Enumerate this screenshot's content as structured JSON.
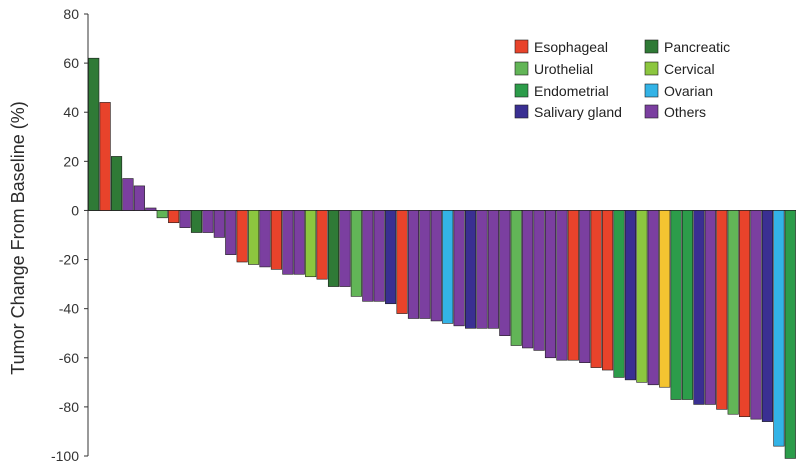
{
  "chart_data": {
    "type": "bar",
    "title": "",
    "xlabel": "",
    "ylabel": "Tumor Change From Baseline (%)",
    "ylim": [
      -100,
      80
    ],
    "yticks": [
      80,
      60,
      40,
      20,
      0,
      -20,
      -40,
      -60,
      -80,
      -100
    ],
    "grid": false,
    "legend_position": "top-right",
    "colors": {
      "Esophageal": "#e8432b",
      "Urothelial": "#62b557",
      "Endometrial": "#2c9c4a",
      "Salivary gland": "#3a2f92",
      "Pancreatic": "#2f7a36",
      "Cervical": "#8cc63f",
      "Ovarian": "#33b3e6",
      "Others": "#7b3fa0",
      "Yellow": "#f4c431"
    },
    "legend": [
      {
        "name": "Esophageal",
        "color": "#e8432b"
      },
      {
        "name": "Pancreatic",
        "color": "#2f7a36"
      },
      {
        "name": "Urothelial",
        "color": "#62b557"
      },
      {
        "name": "Cervical",
        "color": "#8cc63f"
      },
      {
        "name": "Endometrial",
        "color": "#2c9c4a"
      },
      {
        "name": "Ovarian",
        "color": "#33b3e6"
      },
      {
        "name": "Salivary gland",
        "color": "#3a2f92"
      },
      {
        "name": "Others",
        "color": "#7b3fa0"
      }
    ],
    "bars": [
      {
        "cat": "Pancreatic",
        "value": 62
      },
      {
        "cat": "Esophageal",
        "value": 44
      },
      {
        "cat": "Pancreatic",
        "value": 22
      },
      {
        "cat": "Others",
        "value": 13
      },
      {
        "cat": "Others",
        "value": 10
      },
      {
        "cat": "Others",
        "value": 1
      },
      {
        "cat": "Urothelial",
        "value": -3
      },
      {
        "cat": "Esophageal",
        "value": -5
      },
      {
        "cat": "Others",
        "value": -7
      },
      {
        "cat": "Pancreatic",
        "value": -9
      },
      {
        "cat": "Others",
        "value": -9
      },
      {
        "cat": "Others",
        "value": -11
      },
      {
        "cat": "Others",
        "value": -18
      },
      {
        "cat": "Esophageal",
        "value": -21
      },
      {
        "cat": "Cervical",
        "value": -22
      },
      {
        "cat": "Others",
        "value": -23
      },
      {
        "cat": "Esophageal",
        "value": -24
      },
      {
        "cat": "Others",
        "value": -26
      },
      {
        "cat": "Others",
        "value": -26
      },
      {
        "cat": "Cervical",
        "value": -27
      },
      {
        "cat": "Esophageal",
        "value": -28
      },
      {
        "cat": "Pancreatic",
        "value": -31
      },
      {
        "cat": "Others",
        "value": -31
      },
      {
        "cat": "Urothelial",
        "value": -35
      },
      {
        "cat": "Others",
        "value": -37
      },
      {
        "cat": "Others",
        "value": -37
      },
      {
        "cat": "Salivary gland",
        "value": -38
      },
      {
        "cat": "Esophageal",
        "value": -42
      },
      {
        "cat": "Others",
        "value": -44
      },
      {
        "cat": "Others",
        "value": -44
      },
      {
        "cat": "Others",
        "value": -45
      },
      {
        "cat": "Ovarian",
        "value": -46
      },
      {
        "cat": "Others",
        "value": -47
      },
      {
        "cat": "Salivary gland",
        "value": -48
      },
      {
        "cat": "Others",
        "value": -48
      },
      {
        "cat": "Others",
        "value": -48
      },
      {
        "cat": "Others",
        "value": -51
      },
      {
        "cat": "Urothelial",
        "value": -55
      },
      {
        "cat": "Others",
        "value": -56
      },
      {
        "cat": "Others",
        "value": -57
      },
      {
        "cat": "Others",
        "value": -60
      },
      {
        "cat": "Others",
        "value": -61
      },
      {
        "cat": "Esophageal",
        "value": -61
      },
      {
        "cat": "Others",
        "value": -62
      },
      {
        "cat": "Esophageal",
        "value": -64
      },
      {
        "cat": "Esophageal",
        "value": -65
      },
      {
        "cat": "Endometrial",
        "value": -68
      },
      {
        "cat": "Salivary gland",
        "value": -69
      },
      {
        "cat": "Cervical",
        "value": -70
      },
      {
        "cat": "Others",
        "value": -71
      },
      {
        "cat": "Yellow",
        "value": -72
      },
      {
        "cat": "Endometrial",
        "value": -77
      },
      {
        "cat": "Endometrial",
        "value": -77
      },
      {
        "cat": "Salivary gland",
        "value": -79
      },
      {
        "cat": "Others",
        "value": -79
      },
      {
        "cat": "Esophageal",
        "value": -81
      },
      {
        "cat": "Urothelial",
        "value": -83
      },
      {
        "cat": "Esophageal",
        "value": -84
      },
      {
        "cat": "Others",
        "value": -85
      },
      {
        "cat": "Salivary gland",
        "value": -86
      },
      {
        "cat": "Ovarian",
        "value": -96
      },
      {
        "cat": "Endometrial",
        "value": -101
      }
    ]
  }
}
